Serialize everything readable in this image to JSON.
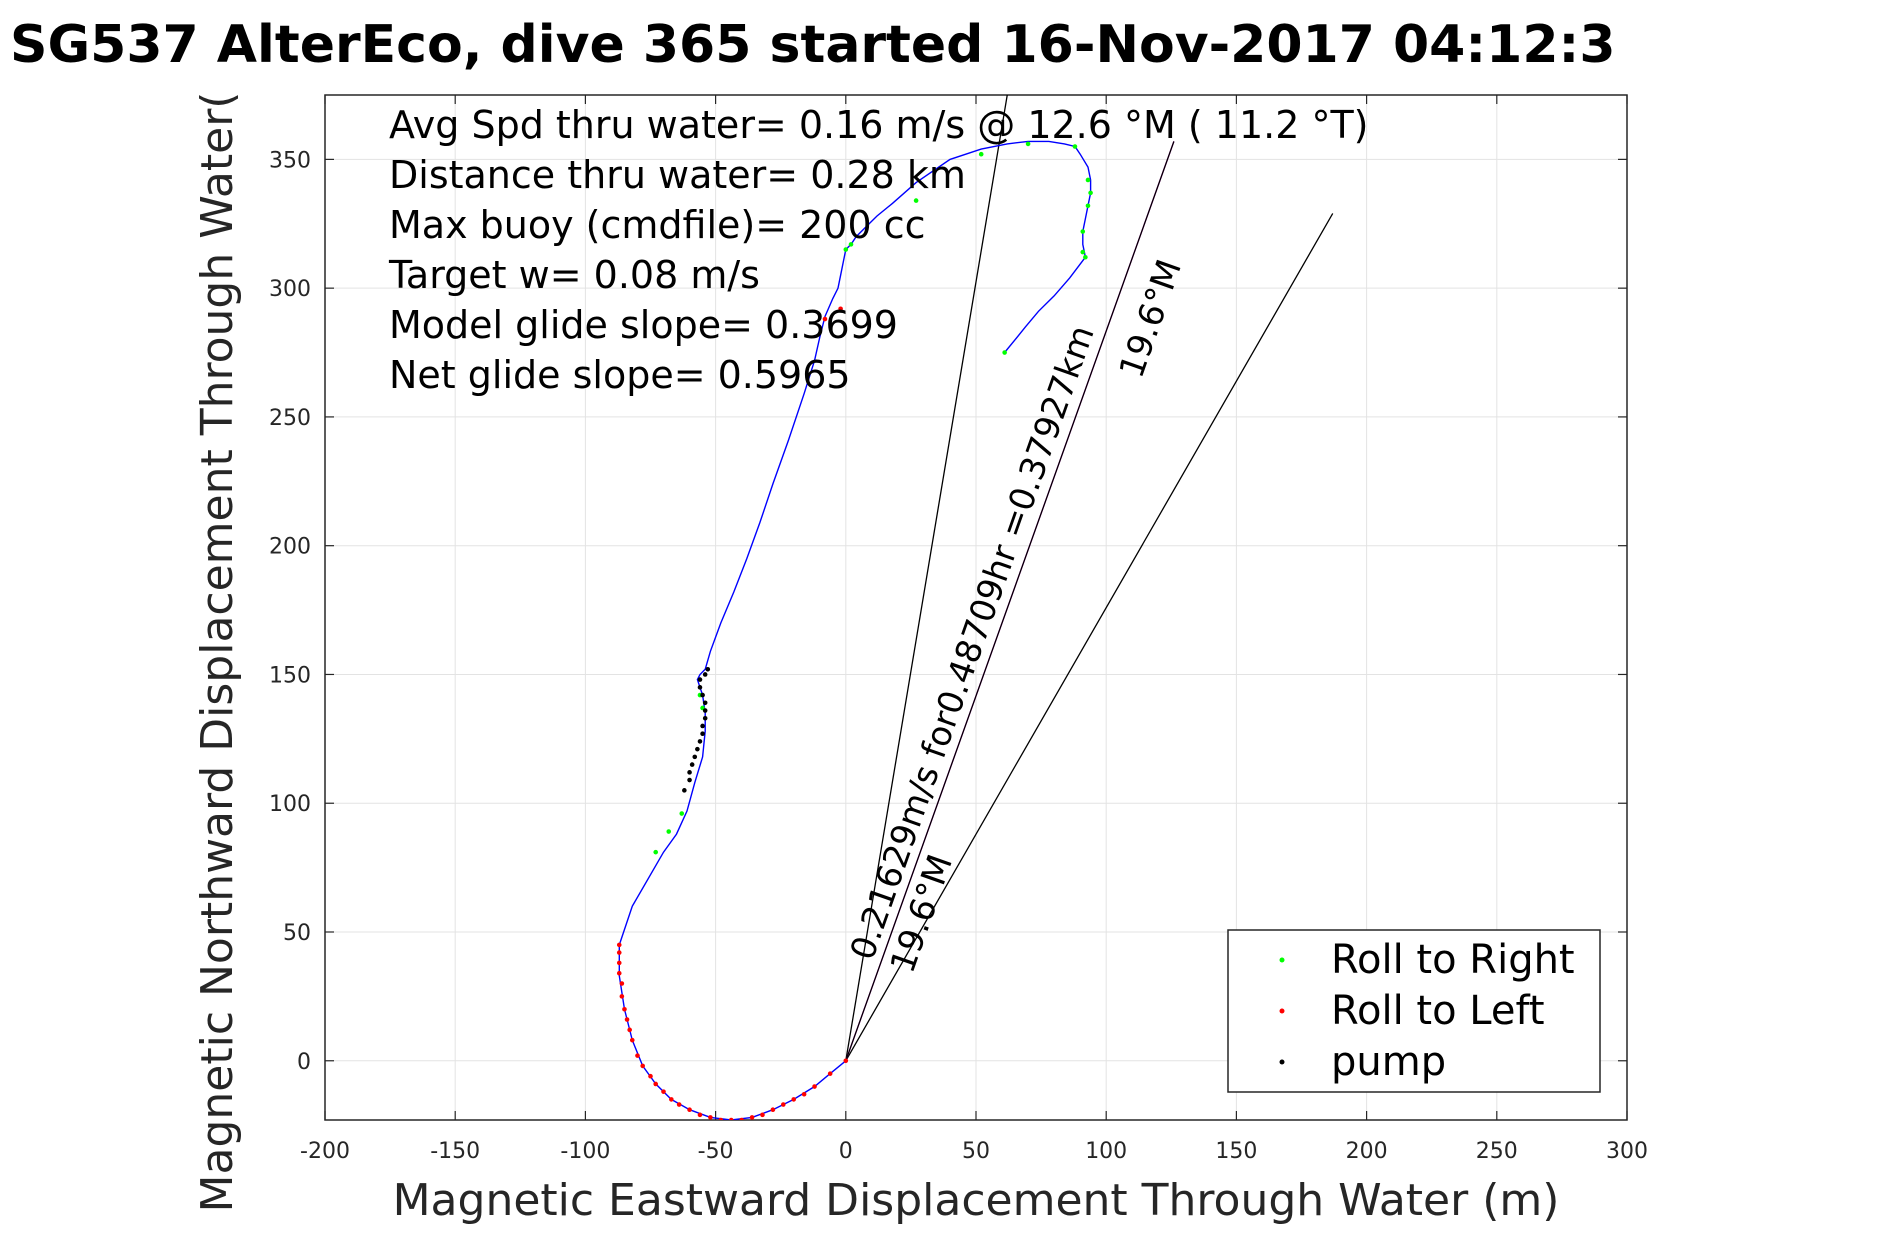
{
  "chart_data": {
    "type": "line",
    "title": "SG537 AlterEco, dive 365 started 16-Nov-2017 04:12:3",
    "xlabel": "Magnetic Eastward Displacement Through Water (m)",
    "ylabel": "Magnetic Northward Displacement Through Water(",
    "xlim": [
      -200,
      300
    ],
    "ylim": [
      -23,
      375
    ],
    "xticks": [
      -200,
      -150,
      -100,
      -50,
      0,
      50,
      100,
      150,
      200,
      250,
      300
    ],
    "yticks": [
      0,
      50,
      100,
      150,
      200,
      250,
      300,
      350
    ],
    "xtick_labels": [
      "-200",
      "-150",
      "-100",
      "-50",
      "0",
      "50",
      "100",
      "150",
      "200",
      "250",
      "300"
    ],
    "ytick_labels": [
      "0",
      "50",
      "100",
      "150",
      "200",
      "250",
      "300",
      "350"
    ],
    "grid": true,
    "annotations": [
      "Avg Spd thru water=  0.16 m/s @  12.6 °M ( 11.2 °T)",
      "Distance thru water=  0.28 km",
      "Max buoy (cmdfile)= 200 cc",
      "Target w= 0.08 m/s",
      "Model glide slope= 0.3699",
      "Net glide slope= 0.5965"
    ],
    "rotated_labels": {
      "speed_label": "0.21629m/s for0.48709hr =0.37927km",
      "heading_left": "19.6°M",
      "heading_right": "19.6°M"
    },
    "track": {
      "color": "#0000ff",
      "x": [
        0,
        -6,
        -12,
        -20,
        -28,
        -36,
        -44,
        -52,
        -60,
        -67,
        -73,
        -78,
        -82,
        -85,
        -87,
        -87,
        -82,
        -70,
        -65,
        -61,
        -58,
        -55,
        -54,
        -54,
        -55,
        -57,
        -56,
        -54,
        -52,
        -48,
        -43,
        -38,
        -33,
        -28,
        -22,
        -16,
        -12,
        -10,
        -8,
        -5,
        -3,
        -2,
        -1,
        0,
        2,
        4,
        8,
        12,
        18,
        27,
        40,
        52,
        62,
        70,
        78,
        84,
        88,
        90,
        93,
        94,
        94,
        93,
        92,
        91,
        91,
        92,
        86,
        80,
        74,
        69,
        65,
        61
      ],
      "y": [
        0,
        -5,
        -10,
        -15,
        -19,
        -22,
        -23,
        -22,
        -19,
        -15,
        -9,
        -2,
        8,
        20,
        33,
        45,
        60,
        81,
        88,
        97,
        108,
        118,
        128,
        135,
        142,
        148,
        150,
        152,
        159,
        170,
        182,
        195,
        209,
        224,
        241,
        259,
        272,
        281,
        289,
        296,
        300,
        305,
        310,
        315,
        317,
        320,
        324,
        328,
        333,
        341,
        350,
        354,
        356,
        357,
        357,
        356,
        355,
        352,
        347,
        342,
        337,
        332,
        327,
        322,
        317,
        312,
        304,
        297,
        291,
        285,
        280,
        275
      ]
    },
    "markers": [
      {
        "series": "Roll to Right",
        "color": "#00ff00",
        "points": [
          [
            -73,
            81
          ],
          [
            -68,
            89
          ],
          [
            -63,
            96
          ],
          [
            -56,
            142
          ],
          [
            -55,
            137
          ],
          [
            0,
            315
          ],
          [
            2,
            317
          ],
          [
            27,
            334
          ],
          [
            52,
            352
          ],
          [
            70,
            356
          ],
          [
            88,
            355
          ],
          [
            93,
            342
          ],
          [
            94,
            337
          ],
          [
            93,
            332
          ],
          [
            91,
            322
          ],
          [
            91,
            314
          ],
          [
            92,
            312
          ],
          [
            61,
            275
          ]
        ]
      },
      {
        "series": "Roll to Left",
        "color": "#ff0000",
        "points": [
          [
            0,
            0
          ],
          [
            -6,
            -5
          ],
          [
            -12,
            -10
          ],
          [
            -16,
            -13
          ],
          [
            -20,
            -15
          ],
          [
            -24,
            -17
          ],
          [
            -28,
            -19
          ],
          [
            -32,
            -21
          ],
          [
            -36,
            -22
          ],
          [
            -40,
            -23
          ],
          [
            -44,
            -23
          ],
          [
            -48,
            -23
          ],
          [
            -52,
            -22
          ],
          [
            -56,
            -21
          ],
          [
            -60,
            -19
          ],
          [
            -64,
            -17
          ],
          [
            -67,
            -15
          ],
          [
            -70,
            -12
          ],
          [
            -73,
            -9
          ],
          [
            -75,
            -6
          ],
          [
            -78,
            -2
          ],
          [
            -80,
            2
          ],
          [
            -82,
            8
          ],
          [
            -83,
            12
          ],
          [
            -84,
            16
          ],
          [
            -85,
            20
          ],
          [
            -86,
            25
          ],
          [
            -86,
            30
          ],
          [
            -87,
            34
          ],
          [
            -87,
            38
          ],
          [
            -87,
            42
          ],
          [
            -87,
            45
          ],
          [
            -2,
            292
          ],
          [
            -8,
            288
          ]
        ]
      },
      {
        "series": "pump",
        "color": "#000000",
        "points": [
          [
            -58,
            118
          ],
          [
            -57,
            121
          ],
          [
            -56,
            124
          ],
          [
            -55,
            127
          ],
          [
            -55,
            130
          ],
          [
            -54,
            133
          ],
          [
            -54,
            136
          ],
          [
            -54,
            139
          ],
          [
            -55,
            142
          ],
          [
            -56,
            145
          ],
          [
            -56,
            148
          ],
          [
            -54,
            150
          ],
          [
            -53,
            152
          ],
          [
            -59,
            115
          ],
          [
            -60,
            112
          ],
          [
            -60,
            109
          ],
          [
            -62,
            105
          ]
        ]
      }
    ],
    "reference_lines": [
      {
        "name": "black-line-1",
        "color": "#000000",
        "x": [
          0,
          62
        ],
        "y": [
          0,
          375
        ]
      },
      {
        "name": "black-line-2",
        "color": "#000000",
        "x": [
          0,
          187
        ],
        "y": [
          0,
          329
        ]
      },
      {
        "name": "magenta-line",
        "color": "#ff00ff",
        "x": [
          0,
          126
        ],
        "y": [
          0,
          357
        ]
      },
      {
        "name": "black-line-3",
        "color": "#000000",
        "x": [
          0,
          126
        ],
        "y": [
          0,
          357
        ]
      }
    ],
    "legend": {
      "position": "bottom-right",
      "entries": [
        {
          "label": "Roll to Right",
          "color": "#00ff00"
        },
        {
          "label": "Roll to Left",
          "color": "#ff0000"
        },
        {
          "label": "pump",
          "color": "#000000"
        }
      ]
    }
  }
}
